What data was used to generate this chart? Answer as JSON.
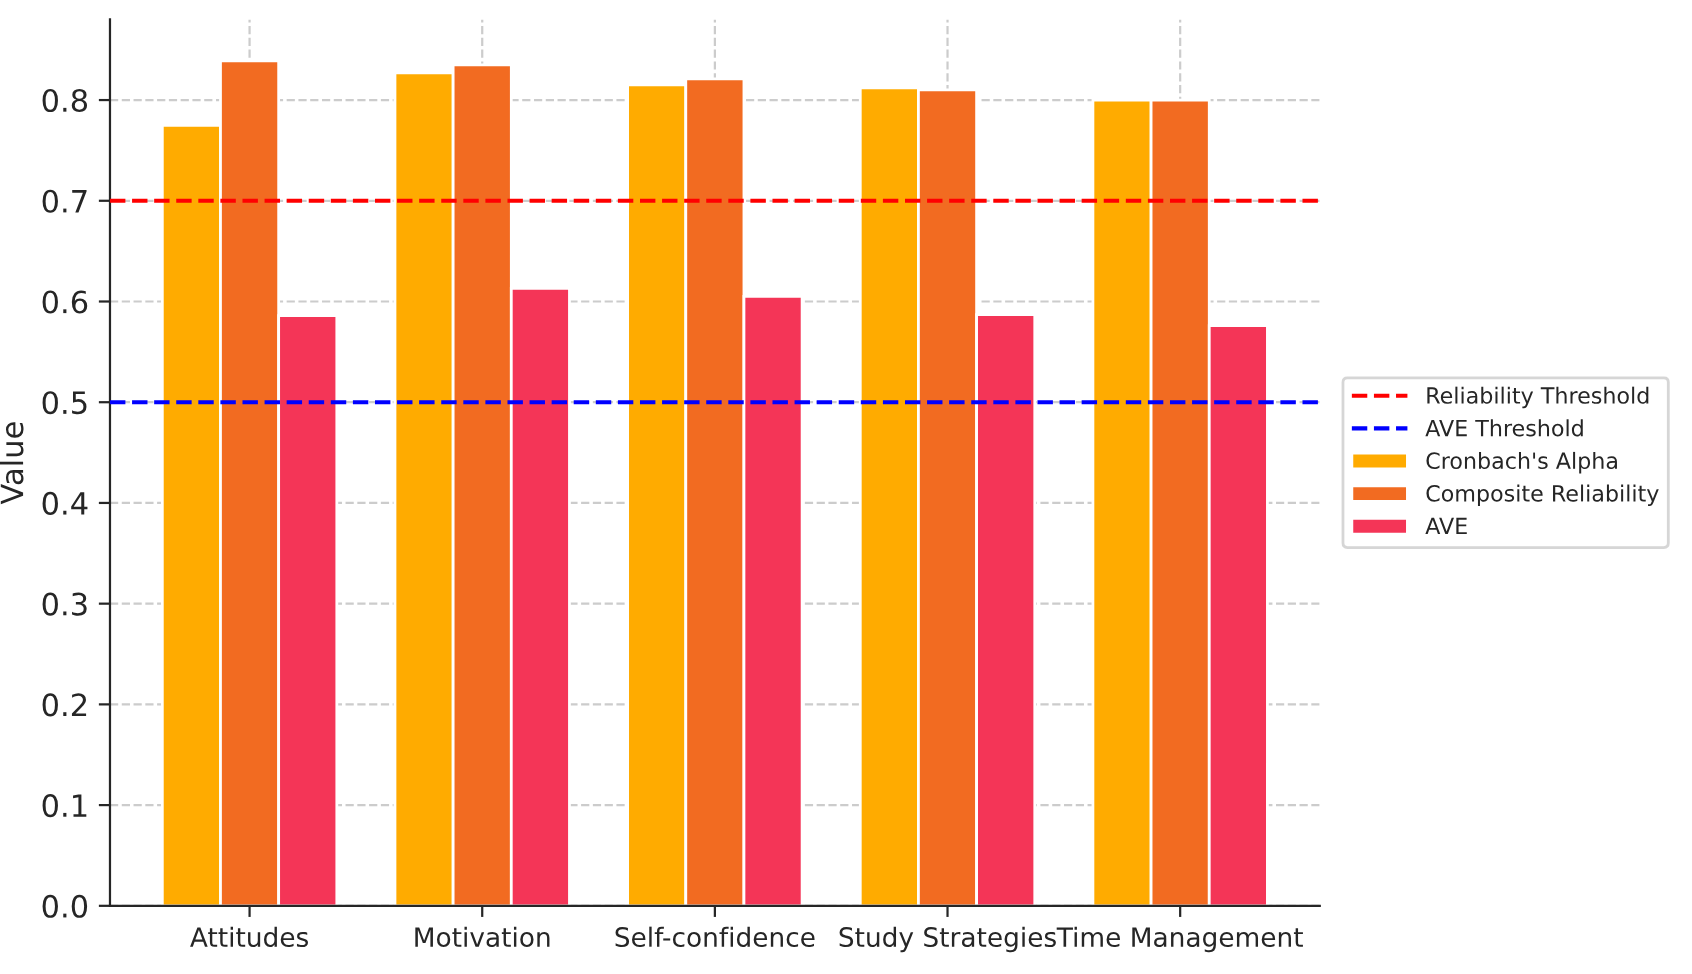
{
  "chart_data": {
    "type": "bar",
    "ylabel": "Value",
    "categories": [
      "Attitudes",
      "Motivation",
      "Self-confidence",
      "Study Strategies",
      "Time Management"
    ],
    "series": [
      {
        "name": "Cronbach's Alpha",
        "color": "#ffab00",
        "values": [
          0.775,
          0.827,
          0.815,
          0.812,
          0.8
        ]
      },
      {
        "name": "Composite Reliability",
        "color": "#f26b21",
        "values": [
          0.839,
          0.835,
          0.821,
          0.81,
          0.8
        ]
      },
      {
        "name": "AVE",
        "color": "#f43557",
        "values": [
          0.586,
          0.613,
          0.605,
          0.587,
          0.576
        ]
      }
    ],
    "ref_lines": [
      {
        "axis": "y",
        "value": 0.7,
        "label": "Reliability Threshold",
        "color": "#ff0000",
        "line_style": "dashed"
      },
      {
        "axis": "y",
        "value": 0.5,
        "label": "AVE Threshold",
        "color": "#0000ff",
        "line_style": "dashed"
      }
    ],
    "ylim": [
      0,
      0.88
    ],
    "yticks": [
      {
        "value": 0,
        "label": "0.0"
      },
      0.1,
      0.2,
      0.3,
      0.4,
      0.5,
      0.6,
      0.7,
      0.8
    ],
    "grid": true,
    "legend": "right"
  }
}
